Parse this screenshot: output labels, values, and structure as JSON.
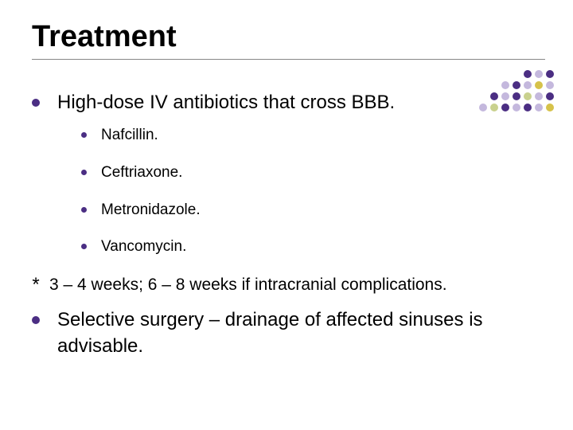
{
  "title": "Treatment",
  "items": {
    "main1": "High-dose IV antibiotics that cross BBB.",
    "sub": [
      "Nafcillin.",
      "Ceftriaxone.",
      "Metronidazole.",
      "Vancomycin."
    ],
    "note_mark": "*",
    "note": "3 – 4 weeks; 6 – 8 weeks if intracranial complications.",
    "main2": "Selective surgery – drainage of affected sinuses is advisable."
  },
  "colors": {
    "bullet": "#4b2e83",
    "hr": "#888888",
    "text": "#000000",
    "bg": "#ffffff"
  },
  "deco": {
    "palette": {
      "p": "#4b2e83",
      "l": "#c4b8dd",
      "y": "#d6c24a",
      "g": "#c9d18e",
      "_": "transparent"
    },
    "grid": [
      [
        "_",
        "_",
        "_",
        "_",
        "p",
        "l",
        "p"
      ],
      [
        "_",
        "_",
        "l",
        "p",
        "l",
        "y",
        "l"
      ],
      [
        "_",
        "p",
        "l",
        "p",
        "g",
        "l",
        "p"
      ],
      [
        "l",
        "g",
        "p",
        "l",
        "p",
        "l",
        "y"
      ]
    ]
  }
}
